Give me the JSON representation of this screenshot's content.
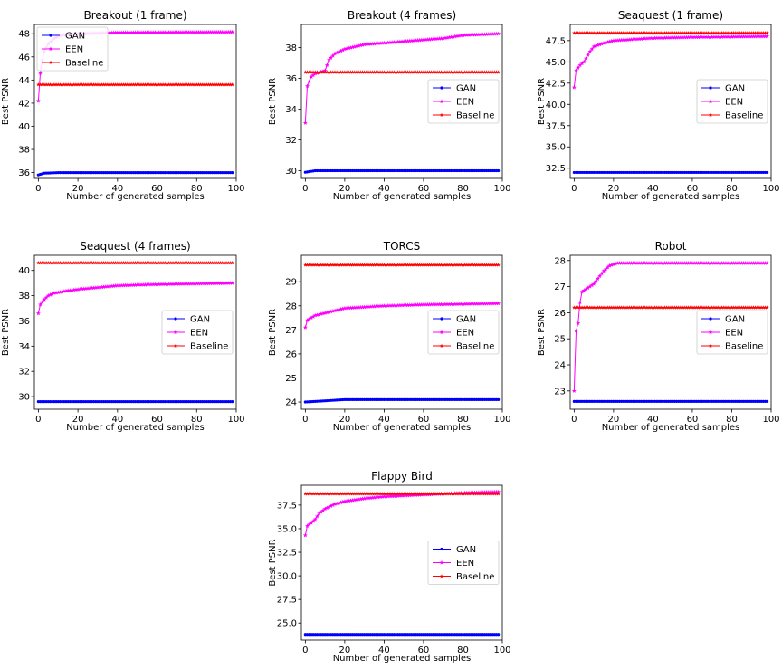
{
  "figure": {
    "series_colors": {
      "GAN": "#0000ff",
      "EEN": "#ff00ff",
      "Baseline": "#ff0000"
    }
  },
  "chart_data": [
    {
      "type": "line",
      "title": "Breakout (1 frame)",
      "xlabel": "Number of generated samples",
      "ylabel": "Best PSNR",
      "xlim": [
        -2,
        100
      ],
      "ylim": [
        35.5,
        48.8
      ],
      "xticks": [
        0,
        20,
        40,
        60,
        80,
        100
      ],
      "yticks": [
        36,
        38,
        40,
        42,
        44,
        46,
        48
      ],
      "ytick_labels": [
        "36",
        "38",
        "40",
        "42",
        "44",
        "46",
        "48"
      ],
      "legend": {
        "loc": "upper-left",
        "entries": [
          "GAN",
          "EEN",
          "Baseline"
        ]
      },
      "series": [
        {
          "name": "GAN",
          "points": [
            [
              0,
              35.8
            ],
            [
              3,
              35.95
            ],
            [
              10,
              36.0
            ],
            [
              98,
              36.0
            ]
          ]
        },
        {
          "name": "EEN",
          "points": [
            [
              0,
              42.2
            ],
            [
              1,
              44.6
            ],
            [
              2,
              45.7
            ],
            [
              3,
              46.5
            ],
            [
              5,
              47.1
            ],
            [
              8,
              47.6
            ],
            [
              12,
              47.9
            ],
            [
              20,
              48.0
            ],
            [
              40,
              48.1
            ],
            [
              98,
              48.15
            ]
          ]
        },
        {
          "name": "Baseline",
          "points": [
            [
              0,
              43.6
            ],
            [
              98,
              43.6
            ]
          ]
        }
      ]
    },
    {
      "type": "line",
      "title": "Breakout (4 frames)",
      "xlabel": "Number of generated samples",
      "ylabel": "Best PSNR",
      "xlim": [
        -2,
        100
      ],
      "ylim": [
        29.5,
        39.5
      ],
      "xticks": [
        0,
        20,
        40,
        60,
        80,
        100
      ],
      "yticks": [
        30,
        32,
        34,
        36,
        38
      ],
      "ytick_labels": [
        "30",
        "32",
        "34",
        "36",
        "38"
      ],
      "legend": {
        "loc": "center-right",
        "entries": [
          "GAN",
          "EEN",
          "Baseline"
        ]
      },
      "series": [
        {
          "name": "GAN",
          "points": [
            [
              0,
              29.9
            ],
            [
              5,
              30.0
            ],
            [
              98,
              30.0
            ]
          ]
        },
        {
          "name": "EEN",
          "points": [
            [
              0,
              33.1
            ],
            [
              1,
              35.5
            ],
            [
              2,
              35.8
            ],
            [
              3,
              36.1
            ],
            [
              5,
              36.3
            ],
            [
              10,
              36.5
            ],
            [
              12,
              37.2
            ],
            [
              15,
              37.6
            ],
            [
              20,
              37.9
            ],
            [
              30,
              38.2
            ],
            [
              50,
              38.4
            ],
            [
              70,
              38.6
            ],
            [
              80,
              38.8
            ],
            [
              98,
              38.9
            ]
          ]
        },
        {
          "name": "Baseline",
          "points": [
            [
              0,
              36.4
            ],
            [
              98,
              36.4
            ]
          ]
        }
      ]
    },
    {
      "type": "line",
      "title": "Seaquest (1 frame)",
      "xlabel": "Number of generated samples",
      "ylabel": "Best PSNR",
      "xlim": [
        -2,
        100
      ],
      "ylim": [
        31.3,
        49.4
      ],
      "xticks": [
        0,
        20,
        40,
        60,
        80,
        100
      ],
      "yticks": [
        32.5,
        35.0,
        37.5,
        40.0,
        42.5,
        45.0,
        47.5
      ],
      "ytick_labels": [
        "32.5",
        "35.0",
        "37.5",
        "40.0",
        "42.5",
        "45.0",
        "47.5"
      ],
      "legend": {
        "loc": "center-right",
        "entries": [
          "GAN",
          "EEN",
          "Baseline"
        ]
      },
      "series": [
        {
          "name": "GAN",
          "points": [
            [
              0,
              32.0
            ],
            [
              98,
              32.0
            ]
          ]
        },
        {
          "name": "EEN",
          "points": [
            [
              0,
              42.0
            ],
            [
              1,
              44.0
            ],
            [
              3,
              44.6
            ],
            [
              5,
              45.0
            ],
            [
              8,
              46.2
            ],
            [
              10,
              46.8
            ],
            [
              15,
              47.2
            ],
            [
              20,
              47.5
            ],
            [
              40,
              47.8
            ],
            [
              60,
              47.9
            ],
            [
              98,
              48.0
            ]
          ]
        },
        {
          "name": "Baseline",
          "points": [
            [
              0,
              48.4
            ],
            [
              98,
              48.4
            ]
          ]
        }
      ]
    },
    {
      "type": "line",
      "title": "Seaquest (4 frames)",
      "xlabel": "Number of generated samples",
      "ylabel": "Best PSNR",
      "xlim": [
        -2,
        100
      ],
      "ylim": [
        29.0,
        41.2
      ],
      "xticks": [
        0,
        20,
        40,
        60,
        80,
        100
      ],
      "yticks": [
        30,
        32,
        34,
        36,
        38,
        40
      ],
      "ytick_labels": [
        "30",
        "32",
        "34",
        "36",
        "38",
        "40"
      ],
      "legend": {
        "loc": "center-right",
        "entries": [
          "GAN",
          "EEN",
          "Baseline"
        ]
      },
      "series": [
        {
          "name": "GAN",
          "points": [
            [
              0,
              29.6
            ],
            [
              98,
              29.6
            ]
          ]
        },
        {
          "name": "EEN",
          "points": [
            [
              0,
              36.6
            ],
            [
              1,
              37.3
            ],
            [
              3,
              37.7
            ],
            [
              5,
              38.0
            ],
            [
              8,
              38.2
            ],
            [
              15,
              38.4
            ],
            [
              20,
              38.5
            ],
            [
              40,
              38.8
            ],
            [
              60,
              38.9
            ],
            [
              98,
              39.0
            ]
          ]
        },
        {
          "name": "Baseline",
          "points": [
            [
              0,
              40.6
            ],
            [
              98,
              40.6
            ]
          ]
        }
      ]
    },
    {
      "type": "line",
      "title": "TORCS",
      "xlabel": "Number of generated samples",
      "ylabel": "Best PSNR",
      "xlim": [
        -2,
        100
      ],
      "ylim": [
        23.7,
        30.1
      ],
      "xticks": [
        0,
        20,
        40,
        60,
        80,
        100
      ],
      "yticks": [
        24,
        25,
        26,
        27,
        28,
        29
      ],
      "ytick_labels": [
        "24",
        "25",
        "26",
        "27",
        "28",
        "29"
      ],
      "legend": {
        "loc": "center-right",
        "entries": [
          "GAN",
          "EEN",
          "Baseline"
        ]
      },
      "series": [
        {
          "name": "GAN",
          "points": [
            [
              0,
              24.0
            ],
            [
              10,
              24.05
            ],
            [
              20,
              24.1
            ],
            [
              98,
              24.1
            ]
          ]
        },
        {
          "name": "EEN",
          "points": [
            [
              0,
              27.1
            ],
            [
              1,
              27.4
            ],
            [
              3,
              27.5
            ],
            [
              5,
              27.6
            ],
            [
              10,
              27.7
            ],
            [
              20,
              27.9
            ],
            [
              40,
              28.0
            ],
            [
              60,
              28.05
            ],
            [
              98,
              28.1
            ]
          ]
        },
        {
          "name": "Baseline",
          "points": [
            [
              0,
              29.7
            ],
            [
              98,
              29.7
            ]
          ]
        }
      ]
    },
    {
      "type": "line",
      "title": "Robot",
      "xlabel": "Number of generated samples",
      "ylabel": "Best PSNR",
      "xlim": [
        -2,
        100
      ],
      "ylim": [
        22.3,
        28.2
      ],
      "xticks": [
        0,
        20,
        40,
        60,
        80,
        100
      ],
      "yticks": [
        23,
        24,
        25,
        26,
        27,
        28
      ],
      "ytick_labels": [
        "23",
        "24",
        "25",
        "26",
        "27",
        "28"
      ],
      "legend": {
        "loc": "center-right",
        "entries": [
          "GAN",
          "EEN",
          "Baseline"
        ]
      },
      "series": [
        {
          "name": "GAN",
          "points": [
            [
              0,
              22.6
            ],
            [
              98,
              22.6
            ]
          ]
        },
        {
          "name": "EEN",
          "points": [
            [
              0,
              23.0
            ],
            [
              1,
              25.3
            ],
            [
              2,
              25.6
            ],
            [
              3,
              26.4
            ],
            [
              4,
              26.8
            ],
            [
              6,
              26.9
            ],
            [
              8,
              27.0
            ],
            [
              10,
              27.1
            ],
            [
              12,
              27.3
            ],
            [
              15,
              27.6
            ],
            [
              18,
              27.8
            ],
            [
              22,
              27.9
            ],
            [
              98,
              27.9
            ]
          ]
        },
        {
          "name": "Baseline",
          "points": [
            [
              0,
              26.2
            ],
            [
              98,
              26.2
            ]
          ]
        }
      ]
    },
    {
      "type": "line",
      "title": "Flappy Bird",
      "xlabel": "Number of generated samples",
      "ylabel": "Best PSNR",
      "xlim": [
        -2,
        100
      ],
      "ylim": [
        23.2,
        39.6
      ],
      "xticks": [
        0,
        20,
        40,
        60,
        80,
        100
      ],
      "yticks": [
        25.0,
        27.5,
        30.0,
        32.5,
        35.0,
        37.5
      ],
      "ytick_labels": [
        "25.0",
        "27.5",
        "30.0",
        "32.5",
        "35.0",
        "37.5"
      ],
      "legend": {
        "loc": "center-right",
        "entries": [
          "GAN",
          "EEN",
          "Baseline"
        ]
      },
      "series": [
        {
          "name": "GAN",
          "points": [
            [
              0,
              23.8
            ],
            [
              98,
              23.8
            ]
          ]
        },
        {
          "name": "EEN",
          "points": [
            [
              0,
              34.3
            ],
            [
              1,
              35.3
            ],
            [
              3,
              35.6
            ],
            [
              5,
              36.0
            ],
            [
              7,
              36.6
            ],
            [
              10,
              37.1
            ],
            [
              15,
              37.6
            ],
            [
              20,
              37.9
            ],
            [
              30,
              38.2
            ],
            [
              40,
              38.4
            ],
            [
              60,
              38.6
            ],
            [
              80,
              38.8
            ],
            [
              98,
              38.9
            ]
          ]
        },
        {
          "name": "Baseline",
          "points": [
            [
              0,
              38.7
            ],
            [
              98,
              38.7
            ]
          ]
        }
      ]
    }
  ]
}
